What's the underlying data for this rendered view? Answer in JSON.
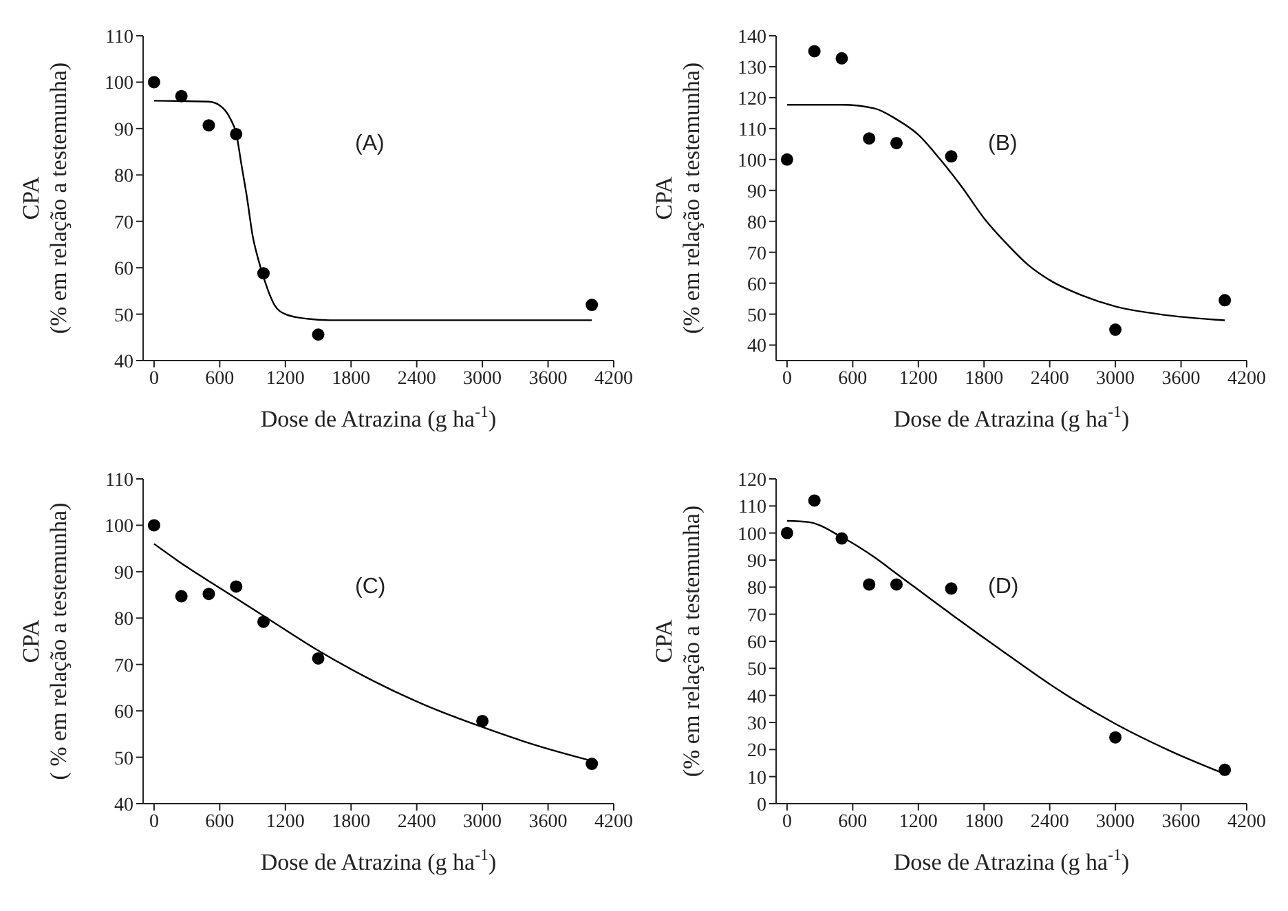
{
  "chart_data": [
    {
      "type": "scatter",
      "xlabel": "Dose de Atrazina (g ha$^{-1}$)",
      "ylabel": "CPA\n(% em relação a testemunha)",
      "annotations": [
        "(A)"
      ],
      "xlim": [
        -100,
        4200
      ],
      "xticks": [
        0,
        600,
        1200,
        1800,
        2400,
        3000,
        3600,
        4200
      ],
      "ylim": [
        40,
        110
      ],
      "yticks": [
        40,
        50,
        60,
        70,
        80,
        90,
        100,
        110
      ],
      "series": [
        {
          "marker": "circle",
          "color": "#000000",
          "x": [
            0,
            250,
            500,
            750,
            1000,
            1500,
            4000
          ],
          "values": [
            100,
            97,
            90.7,
            88.8,
            58.8,
            45.6,
            52
          ]
        },
        {
          "type": "line",
          "marker": "none",
          "line_style": "solid",
          "color": "#000000",
          "x": [
            0,
            500,
            600,
            700,
            750,
            800,
            850,
            900,
            950,
            1000,
            1100,
            1200,
            1400,
            1600,
            4000
          ],
          "values": [
            96,
            95.8,
            95,
            92,
            89,
            82,
            75,
            67,
            62,
            58,
            52,
            50,
            49,
            48.7,
            48.7
          ]
        }
      ]
    },
    {
      "type": "scatter",
      "xlabel": "Dose de Atrazina (g ha$^{-1}$)",
      "ylabel": "CPA\n(% em relação a testemunha)",
      "annotations": [
        "(B)"
      ],
      "xlim": [
        -100,
        4200
      ],
      "xticks": [
        0,
        600,
        1200,
        1800,
        2400,
        3000,
        3600,
        4200
      ],
      "ylim": [
        35,
        140
      ],
      "yticks": [
        40,
        50,
        60,
        70,
        80,
        90,
        100,
        110,
        120,
        130,
        140
      ],
      "series": [
        {
          "marker": "circle",
          "color": "#000000",
          "x": [
            0,
            250,
            500,
            750,
            1000,
            1500,
            3000,
            4000
          ],
          "values": [
            100,
            135,
            132.7,
            106.8,
            105.3,
            101,
            45,
            54.5
          ]
        },
        {
          "type": "line",
          "marker": "none",
          "line_style": "solid",
          "color": "#000000",
          "x": [
            0,
            500,
            800,
            1000,
            1200,
            1400,
            1600,
            1800,
            2000,
            2200,
            2400,
            2700,
            3000,
            3400,
            4000
          ],
          "values": [
            117.7,
            117.7,
            116.5,
            113,
            108,
            100,
            91,
            81,
            73,
            66,
            61,
            56,
            52.5,
            50,
            48
          ]
        }
      ]
    },
    {
      "type": "scatter",
      "xlabel": "Dose de Atrazina (g ha$^{-1}$)",
      "ylabel": "CPA\n( % em relação a testemunha)",
      "annotations": [
        "(C)"
      ],
      "xlim": [
        -100,
        4200
      ],
      "xticks": [
        0,
        600,
        1200,
        1800,
        2400,
        3000,
        3600,
        4200
      ],
      "ylim": [
        40,
        110
      ],
      "yticks": [
        40,
        50,
        60,
        70,
        80,
        90,
        100,
        110
      ],
      "series": [
        {
          "marker": "circle",
          "color": "#000000",
          "x": [
            0,
            250,
            500,
            750,
            1000,
            1500,
            3000,
            4000
          ],
          "values": [
            100,
            84.7,
            85.2,
            86.8,
            79.2,
            71.3,
            57.8,
            48.6
          ]
        },
        {
          "type": "line",
          "marker": "none",
          "line_style": "solid",
          "color": "#000000",
          "x": [
            0,
            300,
            600,
            1000,
            1500,
            2000,
            2500,
            3000,
            3500,
            4000
          ],
          "values": [
            96,
            91,
            86.5,
            80.5,
            73,
            66.5,
            61,
            56.5,
            52.5,
            49.2
          ]
        }
      ]
    },
    {
      "type": "scatter",
      "xlabel": "Dose de Atrazina (g ha$^{-1}$)",
      "ylabel": "CPA\n(% em relação a testemunha)",
      "annotations": [
        "(D)"
      ],
      "xlim": [
        -100,
        4200
      ],
      "xticks": [
        0,
        600,
        1200,
        1800,
        2400,
        3000,
        3600,
        4200
      ],
      "ylim": [
        0,
        120
      ],
      "yticks": [
        0,
        10,
        20,
        30,
        40,
        50,
        60,
        70,
        80,
        90,
        100,
        110,
        120
      ],
      "series": [
        {
          "marker": "circle",
          "color": "#000000",
          "x": [
            0,
            250,
            500,
            750,
            1000,
            1500,
            3000,
            4000
          ],
          "values": [
            100,
            112,
            98,
            81,
            81,
            79.5,
            24.5,
            12.5
          ]
        },
        {
          "type": "line",
          "marker": "none",
          "line_style": "solid",
          "color": "#000000",
          "x": [
            0,
            200,
            500,
            800,
            1000,
            1500,
            2000,
            2500,
            3000,
            3500,
            4000
          ],
          "values": [
            104.5,
            104,
            98.5,
            91,
            85,
            70,
            55.5,
            41.5,
            29.5,
            19.5,
            11
          ]
        }
      ]
    }
  ]
}
